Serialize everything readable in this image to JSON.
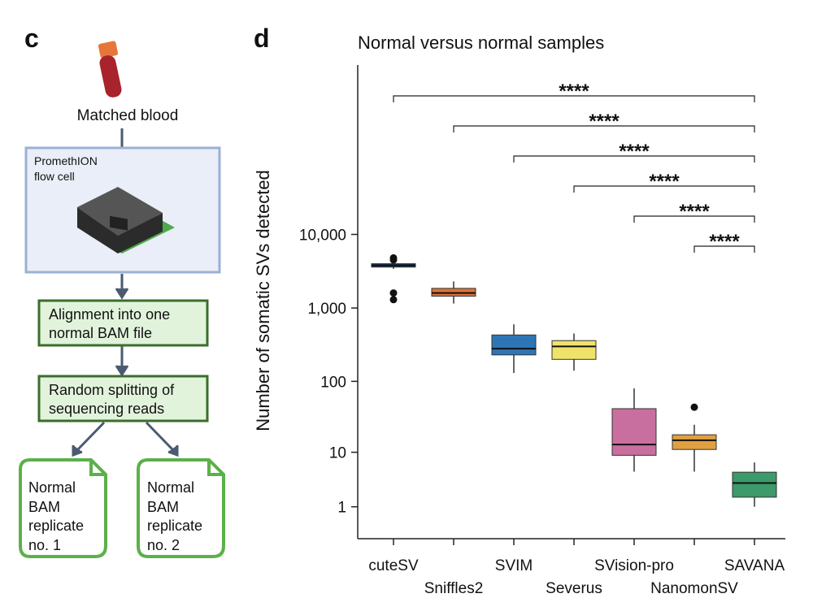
{
  "panels": [
    "c",
    "d"
  ],
  "diagram": {
    "blood_label": "Matched blood",
    "flow_cell_label": [
      "PromethION",
      "flow cell"
    ],
    "alignment": [
      "Alignment into one",
      "normal BAM file"
    ],
    "splitting": [
      "Random splitting of",
      "sequencing reads"
    ],
    "replicates": [
      [
        "Normal",
        "BAM",
        "replicate",
        "no. 1"
      ],
      [
        "Normal",
        "BAM",
        "replicate",
        "no. 2"
      ]
    ]
  },
  "chart_data": {
    "type": "box",
    "title": "Normal versus normal samples",
    "y_label": "Number of somatic SVs detected",
    "yscale": "log1p",
    "ylim": [
      0,
      2000000
    ],
    "yticks": [
      1,
      10,
      100,
      {
        "value": 1000,
        "label": "1,000"
      },
      {
        "value": 10000,
        "label": "10,000"
      }
    ],
    "categories": [
      "cuteSV",
      "Sniffles2",
      "SVIM",
      "Severus",
      "SVision-pro",
      "NanomonSV",
      "SAVANA"
    ],
    "colors": [
      "#1f3a5f",
      "#d9733a",
      "#2e75b6",
      "#f0e36a",
      "#c96fa0",
      "#e0a040",
      "#3d9a6a"
    ],
    "boxes": [
      {
        "low": 3400,
        "q1": 3600,
        "median": 3800,
        "q3": 4000,
        "high": 4200,
        "outliers": [
          4800,
          4500,
          1600,
          1300
        ]
      },
      {
        "low": 1150,
        "q1": 1450,
        "median": 1600,
        "q3": 1850,
        "high": 2300,
        "outliers": []
      },
      {
        "low": 130,
        "q1": 230,
        "median": 280,
        "q3": 430,
        "high": 600,
        "outliers": []
      },
      {
        "low": 140,
        "q1": 200,
        "median": 300,
        "q3": 360,
        "high": 450,
        "outliers": []
      },
      {
        "low": 5,
        "q1": 9,
        "median": 13,
        "q3": 42,
        "high": 80,
        "outliers": []
      },
      {
        "low": 5,
        "q1": 11,
        "median": 15,
        "q3": 18,
        "high": 25,
        "outliers": [
          44
        ]
      },
      {
        "low": 1,
        "q1": 1.7,
        "median": 3.2,
        "q3": 4.9,
        "high": 7,
        "outliers": []
      }
    ],
    "comparisons": [
      {
        "from": 0,
        "to": 6,
        "label": "****"
      },
      {
        "from": 1,
        "to": 6,
        "label": "****"
      },
      {
        "from": 2,
        "to": 6,
        "label": "****"
      },
      {
        "from": 3,
        "to": 6,
        "label": "****"
      },
      {
        "from": 4,
        "to": 6,
        "label": "****"
      },
      {
        "from": 5,
        "to": 6,
        "label": "****"
      }
    ]
  }
}
